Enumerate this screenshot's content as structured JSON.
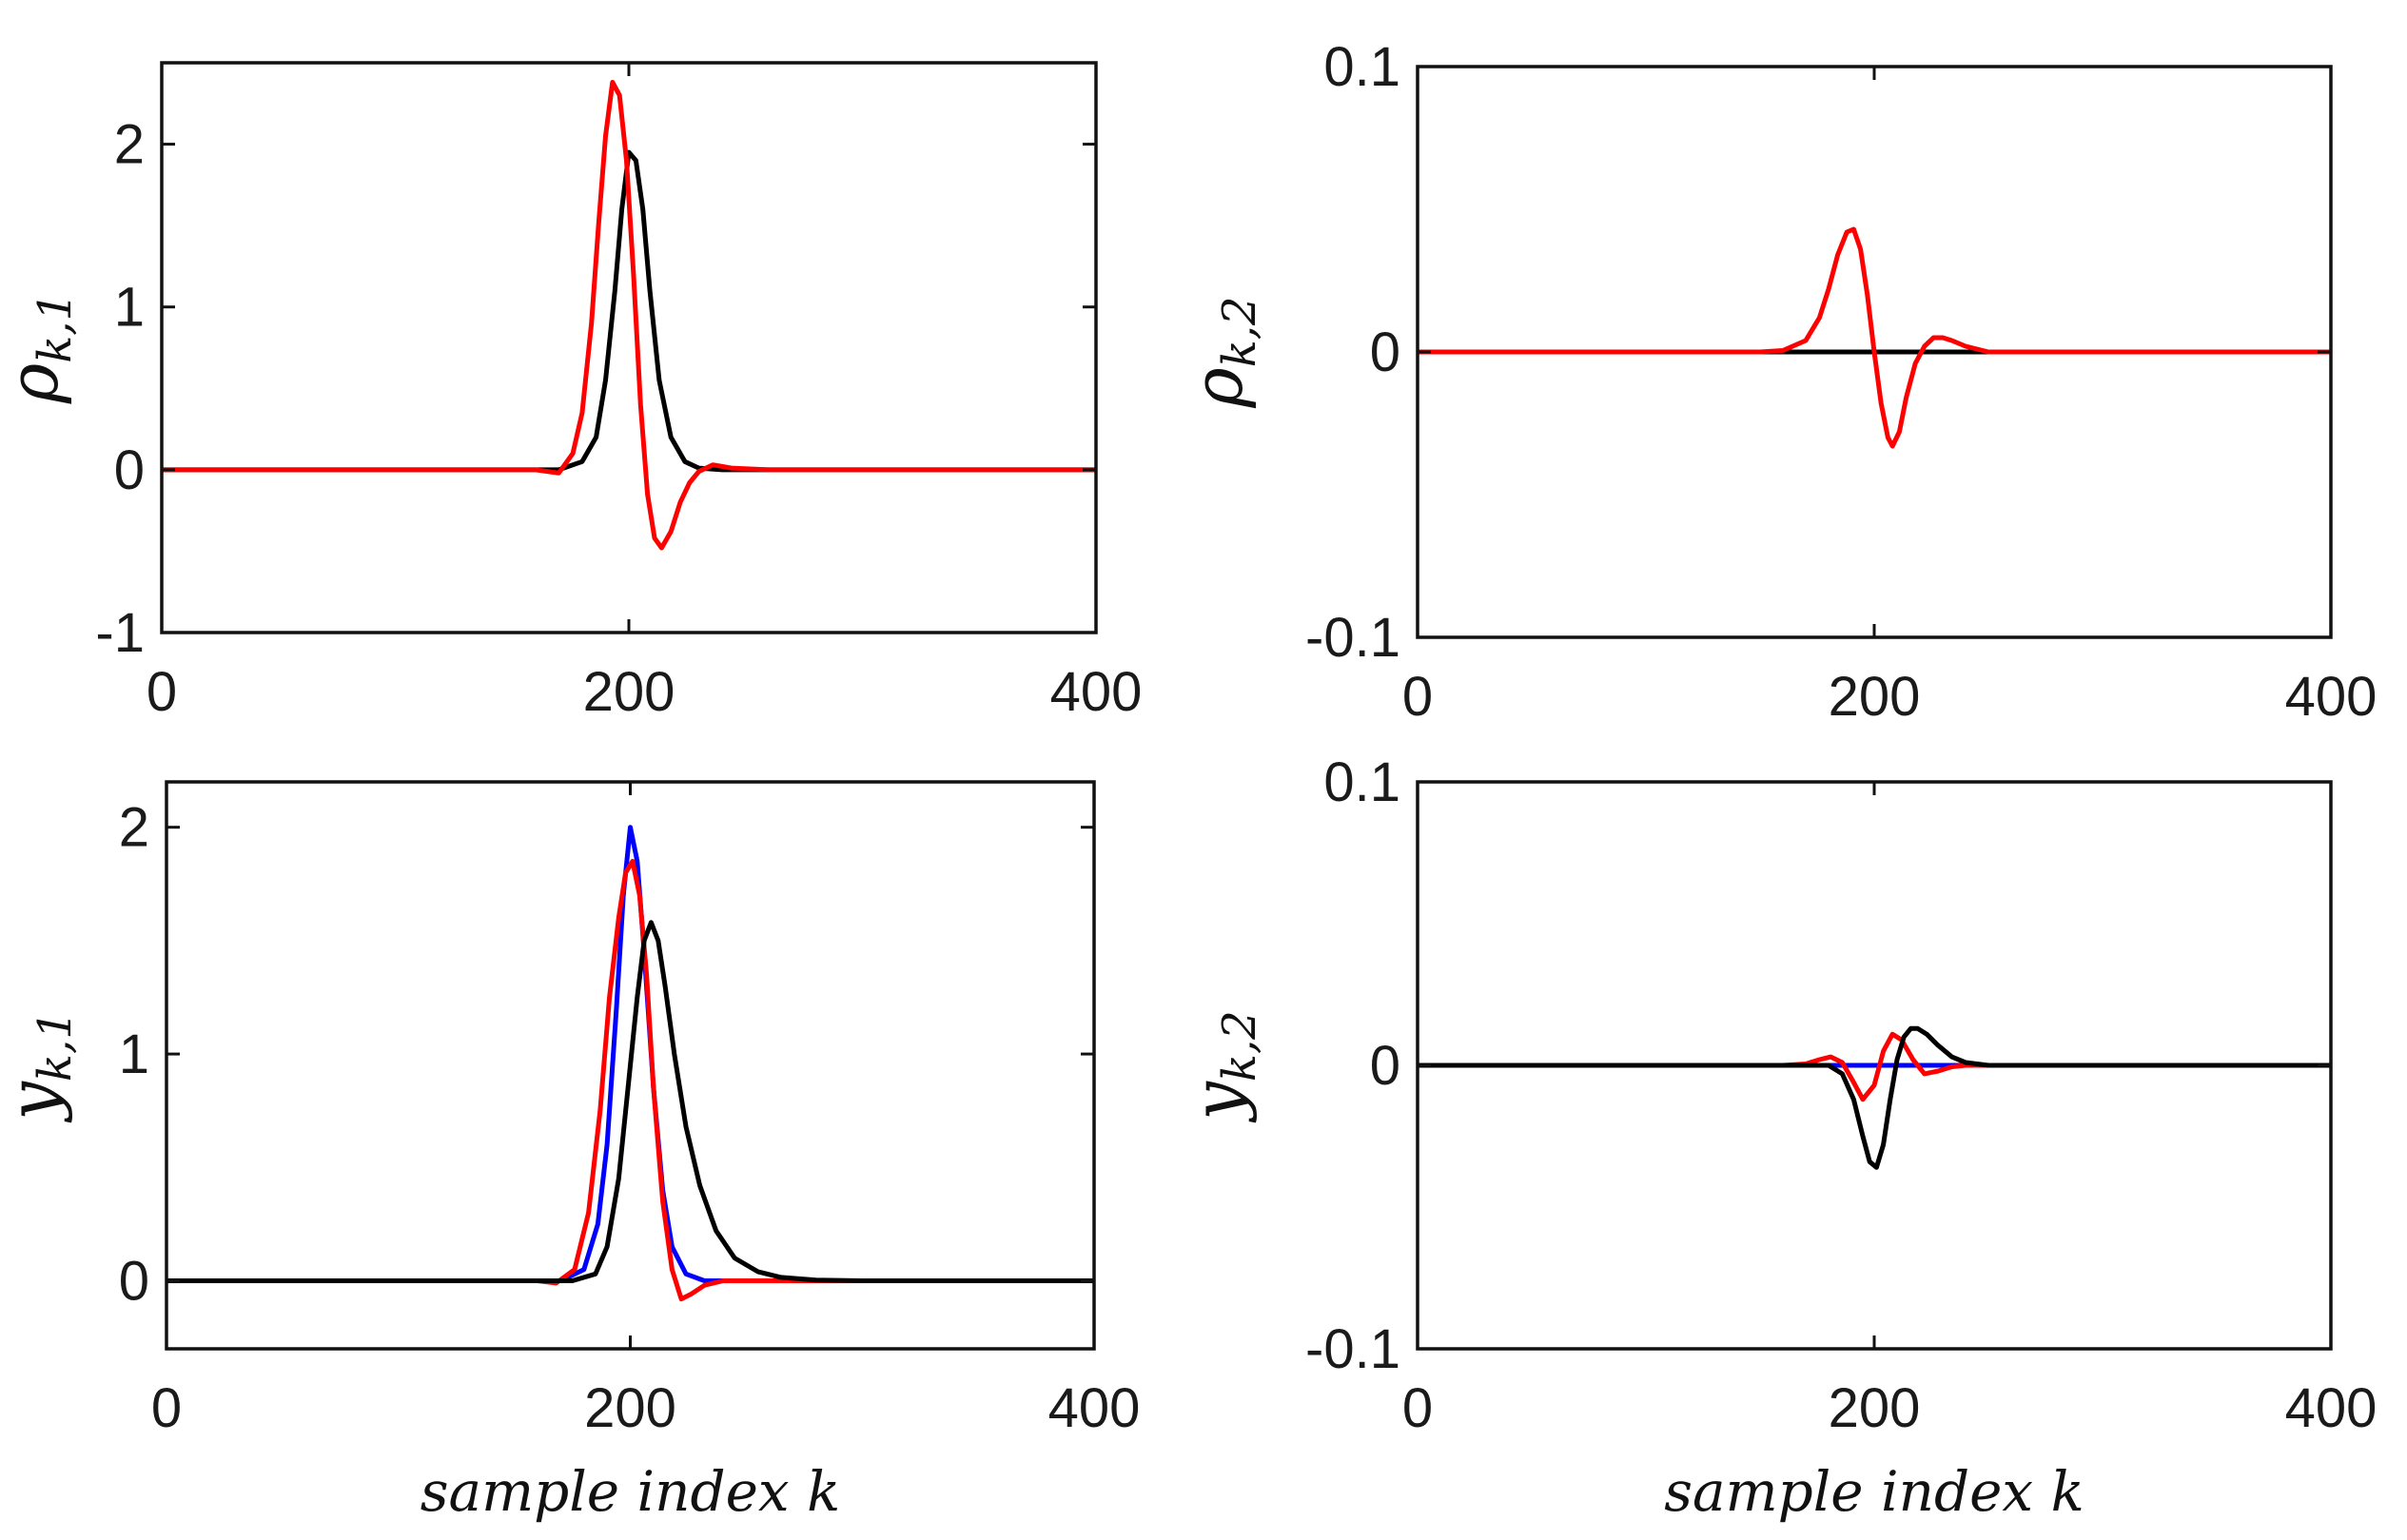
{
  "chart_data": [
    {
      "type": "line",
      "id": "rho1",
      "ylabel_main": "ρ",
      "ylabel_sub": "k,1",
      "xlabel": "",
      "xlim": [
        0,
        400
      ],
      "ylim": [
        -1,
        2.5
      ],
      "xticks": [
        0,
        200,
        400
      ],
      "xtick_labels": [
        "0",
        "200",
        "400"
      ],
      "yticks": [
        -1,
        0,
        1,
        2
      ],
      "ytick_labels": [
        "-1",
        "0",
        "1",
        "2"
      ],
      "series": [
        {
          "name": "black",
          "color": "#000000",
          "x": [
            0,
            170,
            180,
            186,
            190,
            194,
            197,
            200,
            203,
            206,
            209,
            213,
            218,
            224,
            230,
            240,
            400
          ],
          "y": [
            0,
            0,
            0.05,
            0.2,
            0.55,
            1.1,
            1.6,
            1.95,
            1.9,
            1.6,
            1.1,
            0.55,
            0.2,
            0.05,
            0.01,
            0,
            0
          ]
        },
        {
          "name": "red",
          "color": "#ff0000",
          "x": [
            0,
            160,
            170,
            176,
            180,
            184,
            187,
            190,
            193,
            196,
            199,
            202,
            205,
            208,
            211,
            214,
            218,
            222,
            226,
            230,
            236,
            244,
            260,
            400
          ],
          "y": [
            0,
            0,
            -0.02,
            0.1,
            0.35,
            0.9,
            1.5,
            2.05,
            2.38,
            2.3,
            1.9,
            1.2,
            0.4,
            -0.15,
            -0.42,
            -0.48,
            -0.38,
            -0.2,
            -0.08,
            -0.01,
            0.03,
            0.01,
            0,
            0
          ]
        }
      ]
    },
    {
      "type": "line",
      "id": "rho2",
      "ylabel_main": "ρ",
      "ylabel_sub": "k,2",
      "xlabel": "",
      "xlim": [
        0,
        400
      ],
      "ylim": [
        -0.1,
        0.1
      ],
      "xticks": [
        0,
        200,
        400
      ],
      "xtick_labels": [
        "0",
        "200",
        "400"
      ],
      "yticks": [
        -0.1,
        0,
        0.1
      ],
      "ytick_labels": [
        "-0.1",
        "0",
        "0.1"
      ],
      "series": [
        {
          "name": "black",
          "color": "#000000",
          "x": [
            0,
            400
          ],
          "y": [
            0,
            0
          ]
        },
        {
          "name": "red",
          "color": "#ff0000",
          "x": [
            0,
            150,
            160,
            170,
            176,
            180,
            184,
            188,
            191,
            194,
            197,
            200,
            203,
            206,
            208,
            211,
            214,
            218,
            222,
            226,
            230,
            234,
            240,
            250,
            400
          ],
          "y": [
            0,
            0,
            0.0005,
            0.004,
            0.012,
            0.022,
            0.034,
            0.042,
            0.043,
            0.036,
            0.02,
            0,
            -0.018,
            -0.03,
            -0.033,
            -0.028,
            -0.016,
            -0.004,
            0.002,
            0.005,
            0.005,
            0.004,
            0.002,
            0,
            0
          ]
        }
      ]
    },
    {
      "type": "line",
      "id": "y1",
      "ylabel_main": "y",
      "ylabel_sub": "k,1",
      "xlabel": "sample index k",
      "xlim": [
        0,
        400
      ],
      "ylim": [
        -0.3,
        2.2
      ],
      "xticks": [
        0,
        200,
        400
      ],
      "xtick_labels": [
        "0",
        "200",
        "400"
      ],
      "yticks": [
        0,
        1,
        2
      ],
      "ytick_labels": [
        "0",
        "1",
        "2"
      ],
      "series": [
        {
          "name": "blue",
          "color": "#0000ff",
          "x": [
            0,
            170,
            180,
            186,
            190,
            194,
            197,
            200,
            203,
            206,
            210,
            214,
            218,
            224,
            232,
            400
          ],
          "y": [
            0,
            0,
            0.05,
            0.25,
            0.6,
            1.2,
            1.7,
            2.0,
            1.85,
            1.45,
            0.85,
            0.4,
            0.15,
            0.03,
            0,
            0
          ]
        },
        {
          "name": "red",
          "color": "#ff0000",
          "x": [
            0,
            160,
            168,
            176,
            182,
            187,
            191,
            195,
            198,
            201,
            204,
            207,
            210,
            214,
            218,
            222,
            226,
            232,
            240,
            250,
            400
          ],
          "y": [
            0,
            0,
            -0.01,
            0.05,
            0.3,
            0.75,
            1.25,
            1.6,
            1.8,
            1.85,
            1.7,
            1.35,
            0.85,
            0.35,
            0.05,
            -0.08,
            -0.06,
            -0.02,
            0,
            0,
            0
          ]
        },
        {
          "name": "black",
          "color": "#000000",
          "x": [
            0,
            175,
            185,
            190,
            195,
            199,
            203,
            206,
            209,
            212,
            215,
            219,
            224,
            230,
            237,
            245,
            255,
            265,
            280,
            300,
            400
          ],
          "y": [
            0,
            0,
            0.03,
            0.15,
            0.45,
            0.85,
            1.25,
            1.5,
            1.58,
            1.5,
            1.3,
            1.0,
            0.68,
            0.42,
            0.22,
            0.1,
            0.04,
            0.015,
            0.003,
            0,
            0
          ]
        }
      ]
    },
    {
      "type": "line",
      "id": "y2",
      "ylabel_main": "y",
      "ylabel_sub": "k,2",
      "xlabel": "sample index k",
      "xlim": [
        0,
        400
      ],
      "ylim": [
        -0.1,
        0.1
      ],
      "xticks": [
        0,
        200,
        400
      ],
      "xtick_labels": [
        "0",
        "200",
        "400"
      ],
      "yticks": [
        -0.1,
        0,
        0.1
      ],
      "ytick_labels": [
        "-0.1",
        "0",
        "0.1"
      ],
      "series": [
        {
          "name": "blue",
          "color": "#0000ff",
          "x": [
            0,
            400
          ],
          "y": [
            0,
            0
          ]
        },
        {
          "name": "red",
          "color": "#ff0000",
          "x": [
            0,
            160,
            170,
            176,
            181,
            186,
            191,
            195,
            200,
            204,
            208,
            212,
            217,
            222,
            228,
            234,
            240,
            400
          ],
          "y": [
            0,
            0,
            0.0005,
            0.002,
            0.003,
            0.001,
            -0.006,
            -0.012,
            -0.007,
            0.005,
            0.011,
            0.009,
            0.002,
            -0.003,
            -0.002,
            -0.0005,
            0,
            0
          ]
        },
        {
          "name": "black",
          "color": "#000000",
          "x": [
            0,
            180,
            186,
            191,
            195,
            198,
            201,
            204,
            207,
            210,
            213,
            216,
            219,
            223,
            228,
            234,
            240,
            250,
            265,
            400
          ],
          "y": [
            0,
            0,
            -0.003,
            -0.012,
            -0.025,
            -0.034,
            -0.036,
            -0.028,
            -0.012,
            0.002,
            0.01,
            0.013,
            0.013,
            0.011,
            0.007,
            0.003,
            0.001,
            0,
            0,
            0
          ]
        }
      ]
    }
  ]
}
